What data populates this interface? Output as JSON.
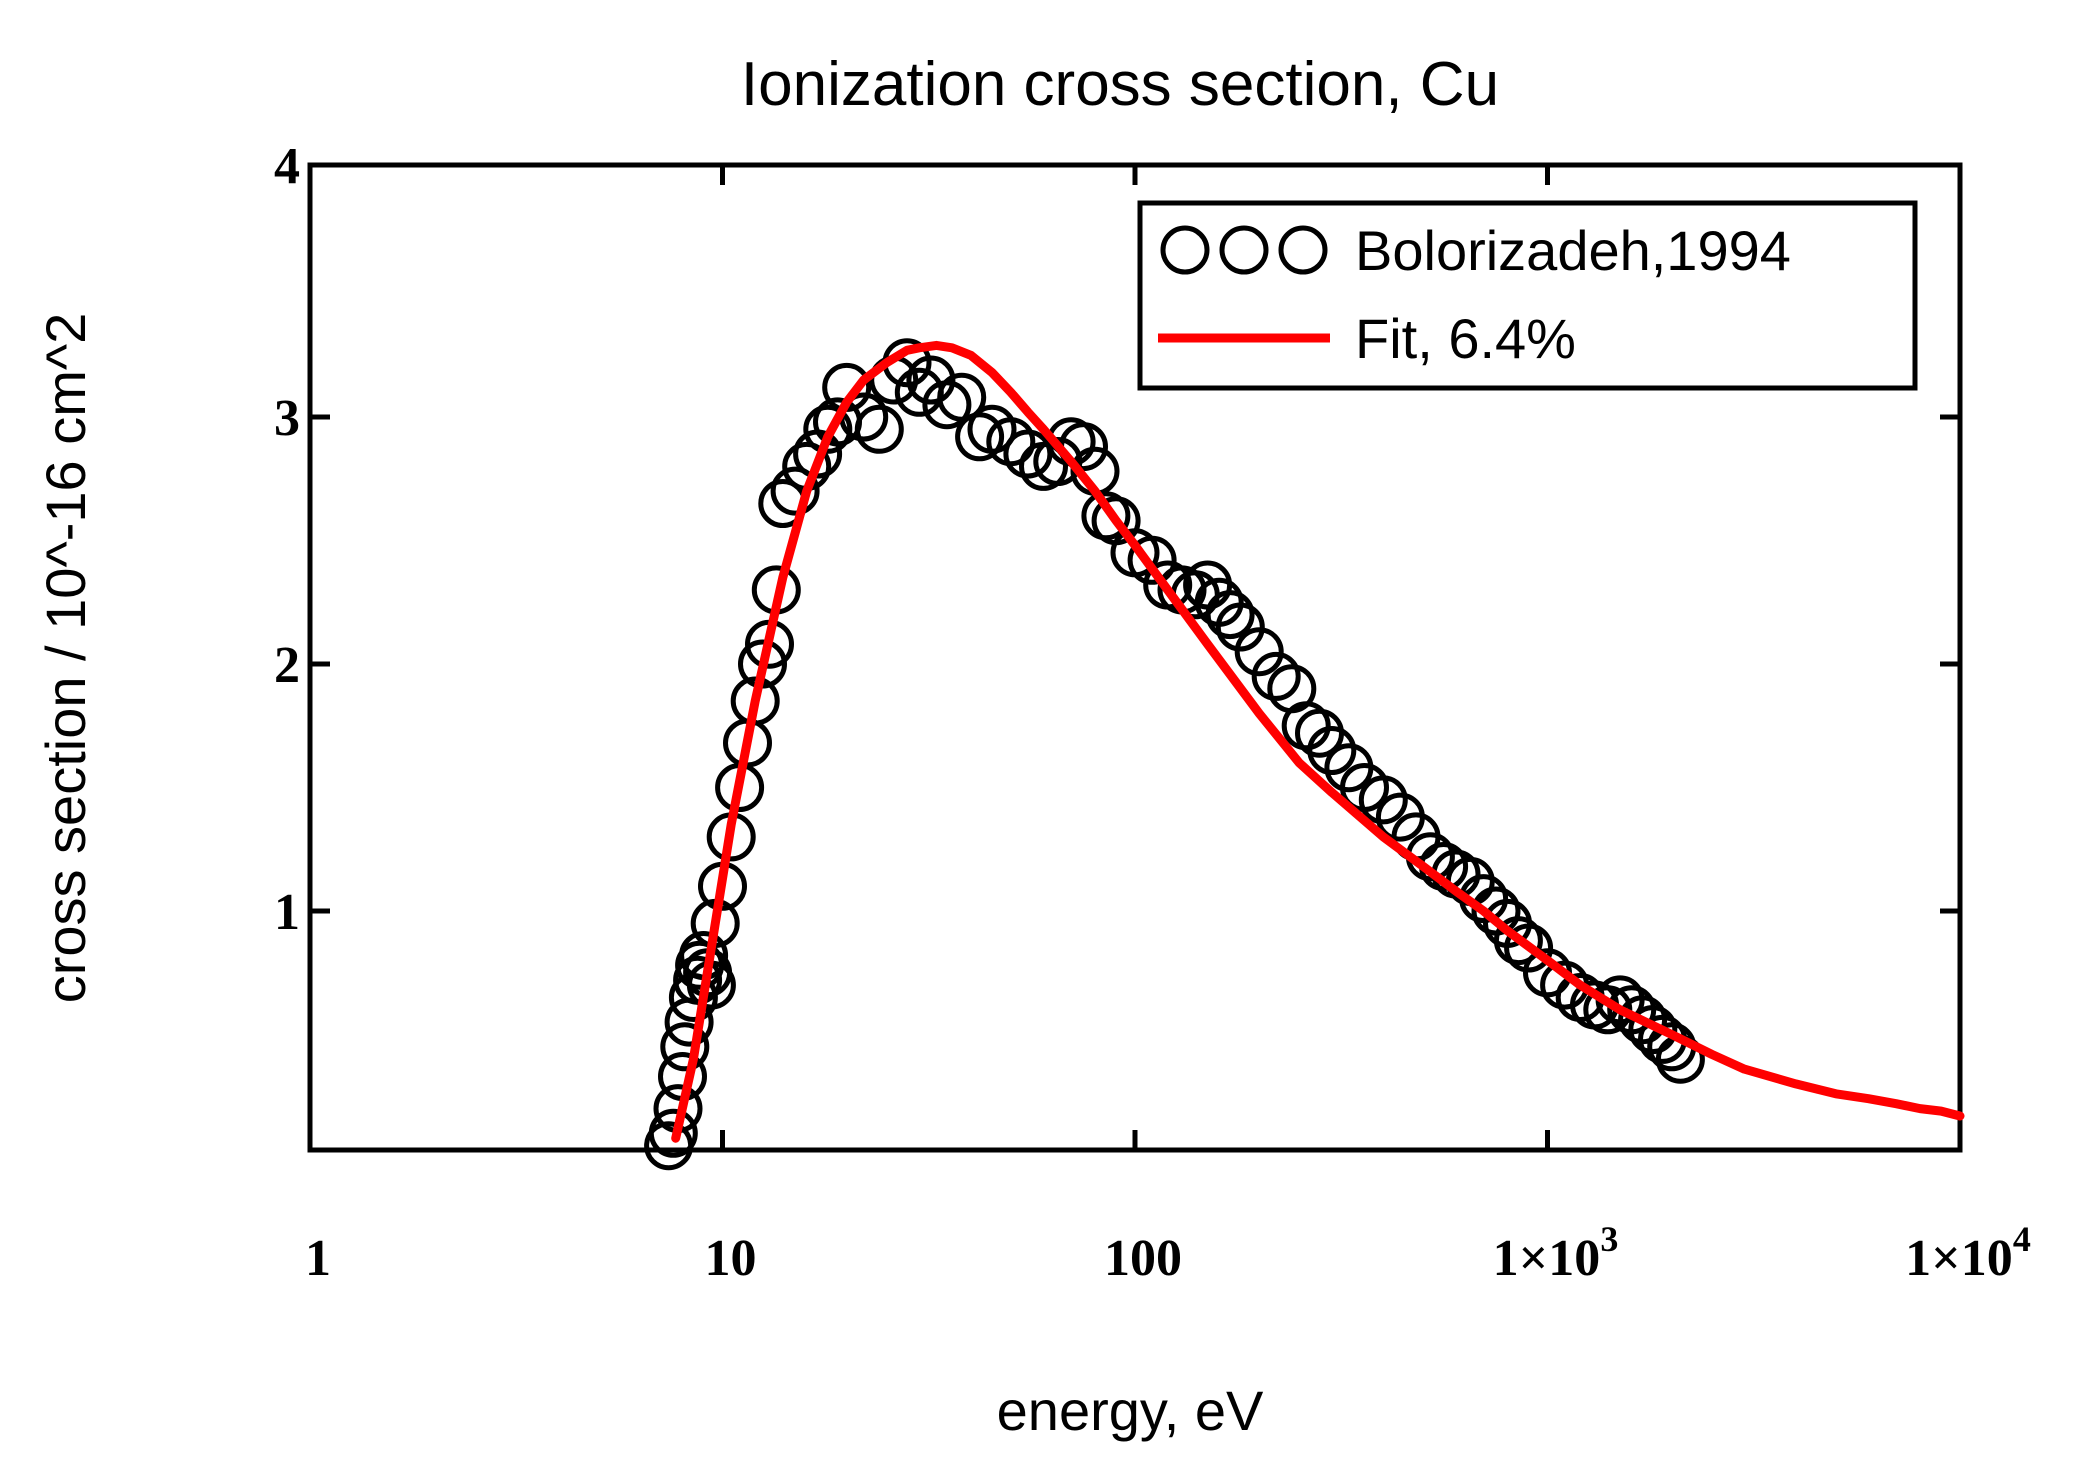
{
  "chart_data": {
    "type": "scatter",
    "title": "Ionization cross section, Cu",
    "xlabel": "energy, eV",
    "ylabel": "cross section / 10^-16 cm^2",
    "xscale": "log",
    "xlim": [
      1,
      10000
    ],
    "ylim": [
      0.03,
      4
    ],
    "x_ticks": [
      {
        "value": 1,
        "label": "1"
      },
      {
        "value": 10,
        "label": "10"
      },
      {
        "value": 100,
        "label": "100"
      },
      {
        "value": 1000,
        "label": "1×10",
        "exp": "3"
      },
      {
        "value": 10000,
        "label": "1×10",
        "exp": "4"
      }
    ],
    "y_ticks": [
      {
        "value": 1,
        "label": "1"
      },
      {
        "value": 2,
        "label": "2"
      },
      {
        "value": 3,
        "label": "3"
      },
      {
        "value": 4,
        "label": "4"
      }
    ],
    "legend_position": "top-right",
    "series": [
      {
        "name": "Bolorizadeh,1994",
        "style": "circles",
        "color": "#000000",
        "x": [
          7.4,
          7.6,
          7.8,
          8.0,
          8.1,
          8.3,
          8.5,
          8.7,
          8.8,
          9.0,
          9.2,
          9.4,
          9.6,
          10,
          10.5,
          11,
          11.5,
          12,
          12.5,
          13,
          13.5,
          14,
          15,
          16,
          17,
          18,
          19,
          20,
          22,
          24,
          26,
          28,
          30,
          32,
          35,
          38,
          42,
          45,
          50,
          55,
          60,
          65,
          70,
          75,
          80,
          85,
          90,
          100,
          110,
          120,
          130,
          140,
          150,
          160,
          170,
          180,
          200,
          220,
          240,
          260,
          280,
          300,
          330,
          360,
          400,
          440,
          480,
          520,
          560,
          600,
          650,
          700,
          750,
          800,
          850,
          900,
          1000,
          1100,
          1200,
          1300,
          1400,
          1500,
          1600,
          1700,
          1800,
          1900,
          2000,
          2100
        ],
        "y": [
          0.05,
          0.1,
          0.2,
          0.33,
          0.45,
          0.55,
          0.65,
          0.72,
          0.78,
          0.82,
          0.75,
          0.7,
          0.95,
          1.1,
          1.3,
          1.5,
          1.68,
          1.85,
          2.0,
          2.08,
          2.3,
          2.65,
          2.7,
          2.8,
          2.85,
          2.95,
          2.98,
          3.12,
          3.0,
          2.95,
          3.15,
          3.22,
          3.1,
          3.15,
          3.05,
          3.08,
          2.92,
          2.95,
          2.9,
          2.85,
          2.8,
          2.82,
          2.9,
          2.88,
          2.78,
          2.6,
          2.58,
          2.45,
          2.42,
          2.32,
          2.3,
          2.28,
          2.32,
          2.25,
          2.2,
          2.15,
          2.05,
          1.95,
          1.9,
          1.75,
          1.72,
          1.65,
          1.58,
          1.5,
          1.45,
          1.38,
          1.3,
          1.22,
          1.18,
          1.15,
          1.12,
          1.05,
          1.0,
          0.95,
          0.88,
          0.85,
          0.75,
          0.7,
          0.65,
          0.62,
          0.6,
          0.64,
          0.6,
          0.56,
          0.52,
          0.48,
          0.45,
          0.4
        ]
      },
      {
        "name": "Fit, 6.4%",
        "style": "line",
        "color": "#ff0000",
        "x": [
          7.7,
          8.5,
          9.5,
          10.5,
          12,
          14,
          16,
          18,
          20,
          22,
          25,
          28,
          30,
          33,
          36,
          40,
          45,
          50,
          55,
          60,
          70,
          80,
          90,
          100,
          120,
          150,
          200,
          250,
          300,
          400,
          500,
          600,
          700,
          800,
          1000,
          1200,
          1500,
          2000,
          2500,
          3000,
          4000,
          5000,
          6000,
          7000,
          8000,
          9000,
          10000
        ],
        "y": [
          0.08,
          0.4,
          0.9,
          1.35,
          1.85,
          2.35,
          2.7,
          2.92,
          3.06,
          3.15,
          3.22,
          3.27,
          3.28,
          3.29,
          3.28,
          3.25,
          3.18,
          3.1,
          3.02,
          2.95,
          2.82,
          2.7,
          2.58,
          2.48,
          2.3,
          2.08,
          1.8,
          1.6,
          1.48,
          1.3,
          1.18,
          1.08,
          1.0,
          0.92,
          0.8,
          0.7,
          0.6,
          0.5,
          0.42,
          0.36,
          0.3,
          0.26,
          0.24,
          0.22,
          0.2,
          0.19,
          0.17
        ]
      }
    ]
  }
}
